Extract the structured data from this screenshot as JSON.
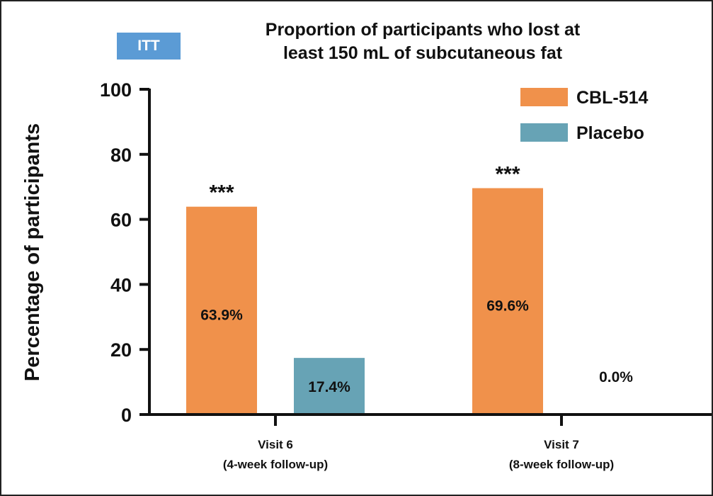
{
  "badge": "ITT",
  "chart_data": {
    "type": "bar",
    "title": "Proportion of participants who lost at least 150 mL of subcutaneous fat",
    "title_lines": [
      "Proportion of participants who lost at",
      "least 150 mL of subcutaneous fat"
    ],
    "ylabel": "Percentage of participants",
    "xlabel": "",
    "ylim": [
      0,
      100
    ],
    "yticks": [
      0,
      20,
      40,
      60,
      80,
      100
    ],
    "categories": [
      [
        "Visit 6",
        "(4-week follow-up)"
      ],
      [
        "Visit 7",
        "(8-week follow-up)"
      ]
    ],
    "series": [
      {
        "name": "CBL-514",
        "color": "#f0914b",
        "values": [
          63.9,
          69.6
        ],
        "labels": [
          "63.9%",
          "69.6%"
        ],
        "annotations": [
          "***",
          "***"
        ]
      },
      {
        "name": "Placebo",
        "color": "#67a3b5",
        "values": [
          17.4,
          0.0
        ],
        "labels": [
          "17.4%",
          "0.0%"
        ],
        "annotations": [
          "",
          ""
        ]
      }
    ],
    "legend_position": "top-right",
    "grid": false
  }
}
